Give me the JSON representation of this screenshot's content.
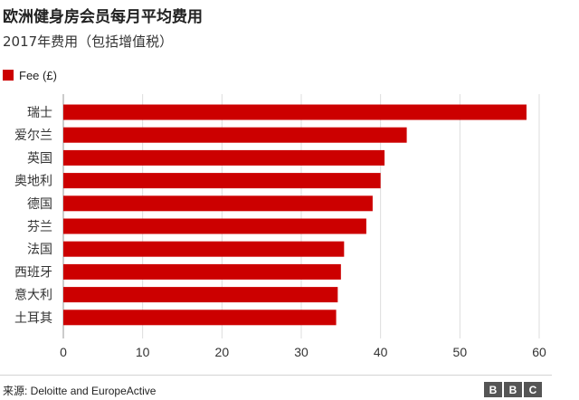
{
  "title": "欧洲健身房会员每月平均费用",
  "subtitle": "2017年费用（包括增值税）",
  "legend": {
    "label": "Fee (£)",
    "color": "#cc0000"
  },
  "source": "来源: Deloitte and EuropeActive",
  "logo": {
    "letters": [
      "B",
      "B",
      "C"
    ]
  },
  "chart_data": {
    "type": "bar",
    "orientation": "horizontal",
    "categories": [
      "瑞士",
      "爱尔兰",
      "英国",
      "奥地利",
      "德国",
      "芬兰",
      "法国",
      "西班牙",
      "意大利",
      "土耳其"
    ],
    "series": [
      {
        "name": "Fee (£)",
        "values": [
          58.4,
          43.3,
          40.5,
          40.0,
          39.0,
          38.2,
          35.4,
          35.0,
          34.6,
          34.4
        ]
      }
    ],
    "xlim": [
      0,
      60
    ],
    "xticks": [
      0,
      10,
      20,
      30,
      40,
      50,
      60
    ],
    "grid": true,
    "bar_color": "#cc0000",
    "legend_position": "top-left"
  }
}
